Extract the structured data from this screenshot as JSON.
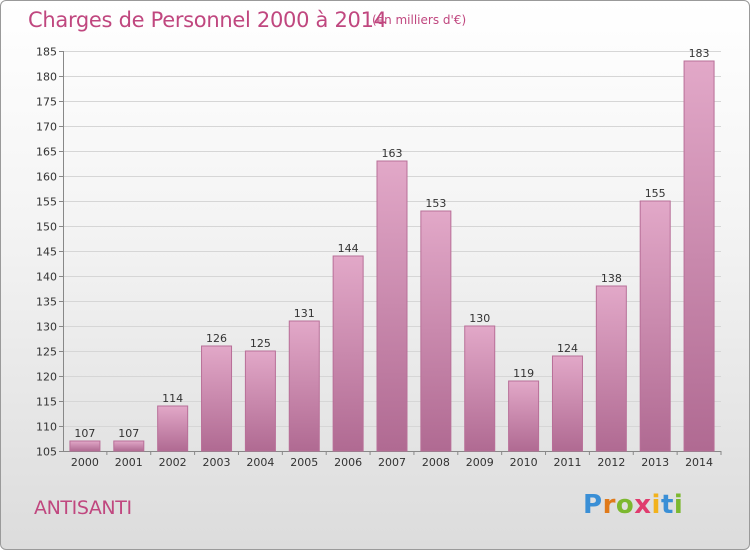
{
  "title": "Charges de Personnel 2000 à 2014",
  "subtitle": "(en milliers d'€)",
  "town": "ANTISANTI",
  "logo": {
    "letters": [
      "P",
      "r",
      "o",
      "x",
      "i",
      "t",
      "i"
    ],
    "colors": [
      "#3a8fd6",
      "#e07a1a",
      "#7cb82f",
      "#e03c6e",
      "#f2b21c",
      "#3a8fd6",
      "#7cb82f"
    ]
  },
  "colors": {
    "accent": "#c0477f",
    "bar_top": "#e2a8c8",
    "bar_bottom": "#b06a92",
    "bar_edge": "#b86f98"
  },
  "chart_data": {
    "type": "bar",
    "categories": [
      "2000",
      "2001",
      "2002",
      "2003",
      "2004",
      "2005",
      "2006",
      "2007",
      "2008",
      "2009",
      "2010",
      "2011",
      "2012",
      "2013",
      "2014"
    ],
    "values": [
      107,
      107,
      114,
      126,
      125,
      131,
      144,
      163,
      153,
      130,
      119,
      124,
      138,
      155,
      183
    ],
    "title": "Charges de Personnel 2000 à 2014",
    "xlabel": "",
    "ylabel": "",
    "ylim": [
      105,
      185
    ],
    "yticks": [
      105,
      110,
      115,
      120,
      125,
      130,
      135,
      140,
      145,
      150,
      155,
      160,
      165,
      170,
      175,
      180,
      185
    ],
    "grid": true,
    "data_labels": true
  }
}
